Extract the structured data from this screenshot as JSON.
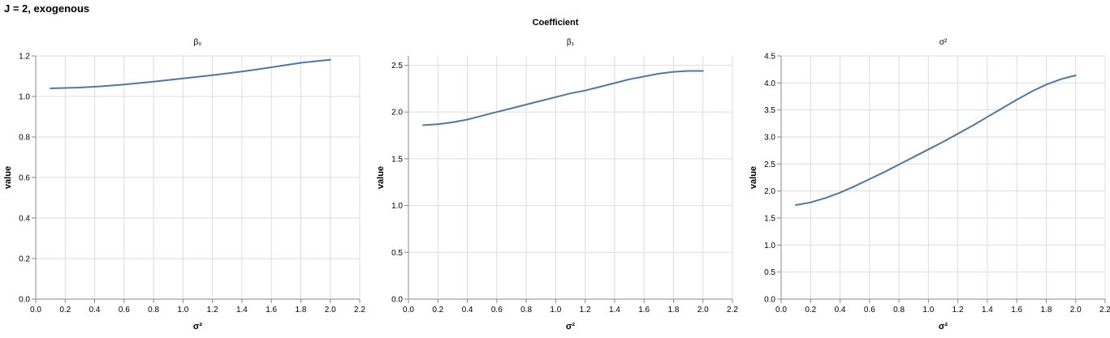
{
  "title": "J = 2, exogenous",
  "facet_header": "Coefficient",
  "colors": {
    "line": "#4c78a8",
    "grid": "#dddddd",
    "axis": "#888888"
  },
  "chart_data": [
    {
      "type": "line",
      "title": "β₀",
      "xlabel": "σ²",
      "ylabel": "value",
      "xlim": [
        0,
        2.2
      ],
      "ylim": [
        0,
        1.2
      ],
      "x_ticks": [
        "0.0",
        "0.2",
        "0.4",
        "0.6",
        "0.8",
        "1.0",
        "1.2",
        "1.4",
        "1.6",
        "1.8",
        "2.0",
        "2.2"
      ],
      "y_ticks": [
        "0.0",
        "0.2",
        "0.4",
        "0.6",
        "0.8",
        "1.0",
        "1.2"
      ],
      "grid": true,
      "series": [
        {
          "x": [
            0.1,
            0.2,
            0.3,
            0.4,
            0.5,
            0.6,
            0.7,
            0.8,
            0.9,
            1.0,
            1.1,
            1.2,
            1.3,
            1.4,
            1.5,
            1.6,
            1.7,
            1.8,
            1.9,
            2.0
          ],
          "y": [
            1.04,
            1.042,
            1.044,
            1.048,
            1.053,
            1.059,
            1.066,
            1.073,
            1.081,
            1.089,
            1.097,
            1.105,
            1.114,
            1.123,
            1.133,
            1.144,
            1.155,
            1.166,
            1.174,
            1.181
          ]
        }
      ]
    },
    {
      "type": "line",
      "title": "β₁",
      "xlabel": "σ²",
      "ylabel": "value",
      "xlim": [
        0,
        2.2
      ],
      "ylim": [
        0,
        2.6
      ],
      "x_ticks": [
        "0.0",
        "0.2",
        "0.4",
        "0.6",
        "0.8",
        "1.0",
        "1.2",
        "1.4",
        "1.6",
        "1.8",
        "2.0",
        "2.2"
      ],
      "y_ticks": [
        "0.0",
        "0.5",
        "1.0",
        "1.5",
        "2.0",
        "2.5"
      ],
      "grid": true,
      "series": [
        {
          "x": [
            0.1,
            0.2,
            0.3,
            0.4,
            0.5,
            0.6,
            0.7,
            0.8,
            0.9,
            1.0,
            1.1,
            1.2,
            1.3,
            1.4,
            1.5,
            1.6,
            1.7,
            1.8,
            1.9,
            2.0
          ],
          "y": [
            1.86,
            1.87,
            1.89,
            1.92,
            1.96,
            2.0,
            2.04,
            2.08,
            2.12,
            2.16,
            2.2,
            2.23,
            2.27,
            2.31,
            2.35,
            2.38,
            2.41,
            2.43,
            2.44,
            2.44
          ]
        }
      ]
    },
    {
      "type": "line",
      "title": "σ²",
      "xlabel": "σ²",
      "ylabel": "value",
      "xlim": [
        0,
        2.2
      ],
      "ylim": [
        0,
        4.5
      ],
      "x_ticks": [
        "0.0",
        "0.2",
        "0.4",
        "0.6",
        "0.8",
        "1.0",
        "1.2",
        "1.4",
        "1.6",
        "1.8",
        "2.0",
        "2.2"
      ],
      "y_ticks": [
        "0.0",
        "0.5",
        "1.0",
        "1.5",
        "2.0",
        "2.5",
        "3.0",
        "3.5",
        "4.0",
        "4.5"
      ],
      "grid": true,
      "series": [
        {
          "x": [
            0.1,
            0.2,
            0.3,
            0.4,
            0.5,
            0.6,
            0.7,
            0.8,
            0.9,
            1.0,
            1.1,
            1.2,
            1.3,
            1.4,
            1.5,
            1.6,
            1.7,
            1.8,
            1.9,
            2.0
          ],
          "y": [
            1.74,
            1.79,
            1.87,
            1.97,
            2.09,
            2.22,
            2.35,
            2.49,
            2.63,
            2.77,
            2.91,
            3.06,
            3.21,
            3.37,
            3.53,
            3.69,
            3.84,
            3.97,
            4.07,
            4.14
          ]
        }
      ]
    }
  ]
}
